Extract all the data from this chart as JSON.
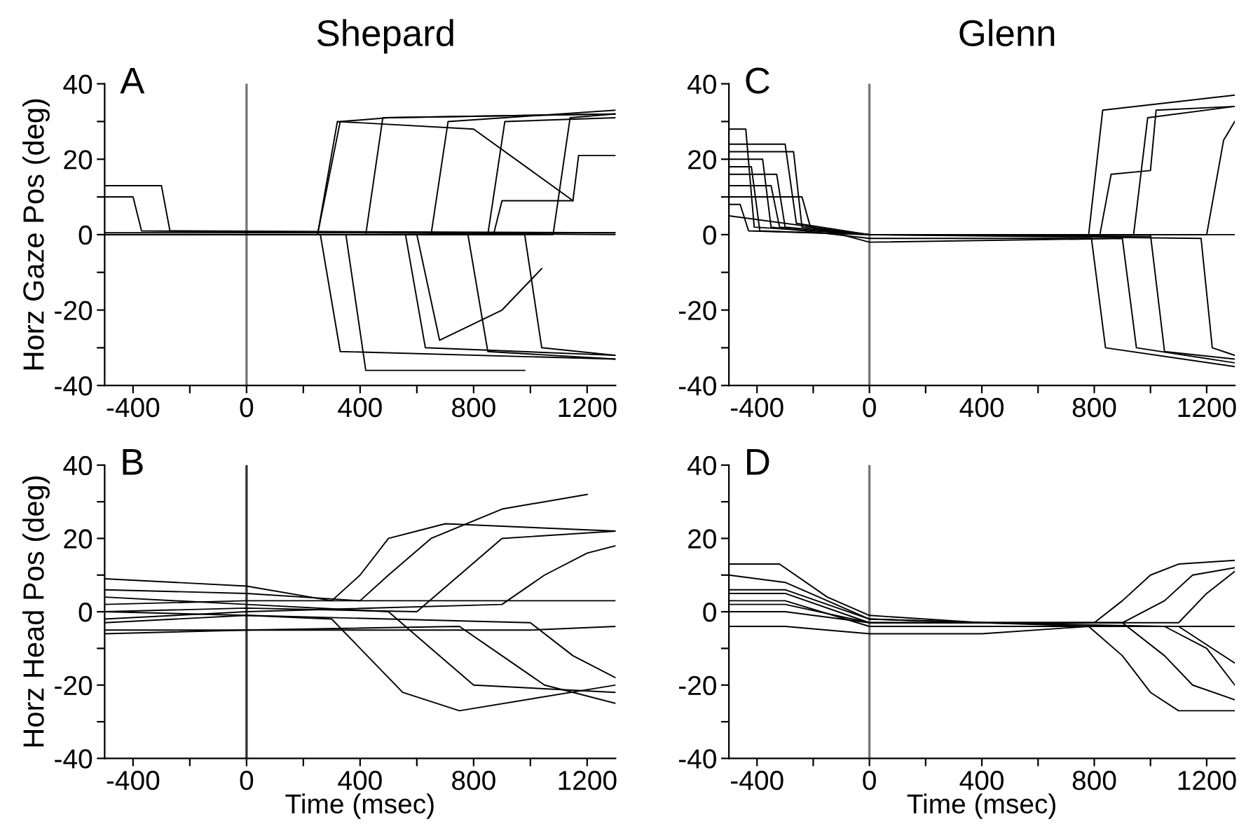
{
  "chart_data": [
    {
      "type": "line",
      "title": "Shepard",
      "ylabel": "Horz Gaze Pos (deg)",
      "annotations": [
        "A"
      ],
      "xlim": [
        -500,
        1300
      ],
      "ylim": [
        -40,
        40
      ],
      "xticks": [
        -400,
        {
          "value": -200,
          "label": null
        },
        0,
        {
          "value": 200,
          "label": null
        },
        400,
        {
          "value": 600,
          "label": null
        },
        800,
        {
          "value": 1000,
          "label": null
        },
        1200
      ],
      "yticks": [
        -40,
        {
          "value": -30,
          "label": null
        },
        -20,
        {
          "value": -10,
          "label": null
        },
        0,
        {
          "value": 10,
          "label": null
        },
        20,
        {
          "value": 30,
          "label": null
        },
        40
      ],
      "ref_lines": [
        {
          "axis": "x",
          "value": 0,
          "color": "#777777"
        }
      ],
      "series": [
        {
          "color": "#000000",
          "x": [
            -500,
            0,
            1300
          ],
          "values": [
            0.5,
            0.5,
            0.5
          ]
        },
        {
          "color": "#000000",
          "x": [
            -500,
            -300,
            -270,
            1300
          ],
          "values": [
            13,
            13,
            1,
            0.5
          ]
        },
        {
          "color": "#000000",
          "x": [
            -500,
            -400,
            -370,
            1300
          ],
          "values": [
            10,
            10,
            1,
            0
          ]
        },
        {
          "color": "#000000",
          "x": [
            -500,
            250,
            330,
            500,
            1300
          ],
          "values": [
            0,
            0,
            30,
            31,
            32
          ]
        },
        {
          "color": "#000000",
          "x": [
            -500,
            420,
            480,
            1300
          ],
          "values": [
            0,
            0,
            31,
            32
          ]
        },
        {
          "color": "#000000",
          "x": [
            -500,
            650,
            710,
            1300
          ],
          "values": [
            0,
            0,
            30,
            33
          ]
        },
        {
          "color": "#000000",
          "x": [
            -500,
            850,
            910,
            1300
          ],
          "values": [
            0,
            0,
            30,
            31
          ]
        },
        {
          "color": "#000000",
          "x": [
            -500,
            1080,
            1140,
            1300
          ],
          "values": [
            0,
            0,
            31,
            32
          ]
        },
        {
          "color": "#000000",
          "x": [
            -500,
            250,
            320,
            800,
            1150
          ],
          "values": [
            0,
            0,
            30,
            28,
            9
          ]
        },
        {
          "color": "#000000",
          "x": [
            -500,
            260,
            330,
            1300
          ],
          "values": [
            0,
            0,
            -31,
            -33
          ]
        },
        {
          "color": "#000000",
          "x": [
            -500,
            350,
            420,
            980
          ],
          "values": [
            0,
            0,
            -36,
            -36
          ]
        },
        {
          "color": "#000000",
          "x": [
            -500,
            560,
            630,
            1300
          ],
          "values": [
            0,
            0,
            -30,
            -32
          ]
        },
        {
          "color": "#000000",
          "x": [
            -500,
            600,
            680,
            900,
            1040
          ],
          "values": [
            0,
            0,
            -28,
            -20,
            -9
          ]
        },
        {
          "color": "#000000",
          "x": [
            -500,
            780,
            850,
            1300
          ],
          "values": [
            0,
            0,
            -31,
            -33
          ]
        },
        {
          "color": "#000000",
          "x": [
            -500,
            980,
            1040,
            1300
          ],
          "values": [
            0,
            0,
            -30,
            -32
          ]
        },
        {
          "color": "#000000",
          "x": [
            -500,
            870,
            900,
            1150,
            1170,
            1300
          ],
          "values": [
            0,
            0,
            9,
            9,
            21,
            21
          ]
        }
      ]
    },
    {
      "type": "line",
      "title": "Glenn",
      "annotations": [
        "C"
      ],
      "xlim": [
        -500,
        1300
      ],
      "ylim": [
        -40,
        40
      ],
      "xticks": [
        -400,
        {
          "value": -200,
          "label": null
        },
        0,
        {
          "value": 200,
          "label": null
        },
        400,
        {
          "value": 600,
          "label": null
        },
        800,
        {
          "value": 1000,
          "label": null
        },
        1200
      ],
      "yticks": [
        -40,
        {
          "value": -30,
          "label": null
        },
        -20,
        {
          "value": -10,
          "label": null
        },
        0,
        {
          "value": 10,
          "label": null
        },
        20,
        {
          "value": 30,
          "label": null
        },
        40
      ],
      "ref_lines": [
        {
          "axis": "x",
          "value": 0,
          "color": "#777777"
        }
      ],
      "series": [
        {
          "color": "#000000",
          "x": [
            -500,
            -440,
            -410,
            0,
            1300
          ],
          "values": [
            28,
            28,
            2,
            0,
            0
          ]
        },
        {
          "color": "#000000",
          "x": [
            -500,
            -300,
            -260,
            0,
            1000
          ],
          "values": [
            24,
            24,
            3,
            0,
            -0.5
          ]
        },
        {
          "color": "#000000",
          "x": [
            -500,
            -240,
            -210,
            0,
            780,
            830,
            1300
          ],
          "values": [
            10,
            10,
            2,
            0,
            0,
            33,
            37
          ]
        },
        {
          "color": "#000000",
          "x": [
            -500,
            -380,
            -350,
            0,
            790,
            840,
            1300
          ],
          "values": [
            20,
            20,
            2,
            -1,
            -1,
            -30,
            -35
          ]
        },
        {
          "color": "#000000",
          "x": [
            -500,
            -460,
            -430,
            0,
            820,
            860,
            1000,
            1020,
            1300
          ],
          "values": [
            8,
            8,
            1,
            0,
            0,
            16,
            17,
            33,
            34
          ]
        },
        {
          "color": "#000000",
          "x": [
            -500,
            -330,
            -300,
            0,
            940,
            990,
            1300
          ],
          "values": [
            16,
            16,
            2,
            0,
            0,
            31,
            34
          ]
        },
        {
          "color": "#000000",
          "x": [
            -500,
            -420,
            -390,
            0,
            1000,
            1050,
            1300
          ],
          "values": [
            18,
            18,
            1,
            0,
            0,
            -31,
            -33
          ]
        },
        {
          "color": "#000000",
          "x": [
            -500,
            -270,
            -240,
            0,
            1180,
            1220,
            1300
          ],
          "values": [
            22,
            22,
            2,
            0,
            -1,
            -30,
            -32
          ]
        },
        {
          "color": "#000000",
          "x": [
            -500,
            -350,
            -320,
            0,
            1200,
            1260,
            1300
          ],
          "values": [
            13,
            13,
            2,
            0,
            0,
            25,
            30
          ]
        },
        {
          "color": "#000000",
          "x": [
            -500,
            -200,
            0,
            900,
            950,
            1300
          ],
          "values": [
            5,
            2,
            -2,
            -1,
            -30,
            -34
          ]
        }
      ]
    },
    {
      "type": "line",
      "xlabel": "Time (msec)",
      "ylabel": "Horz Head Pos (deg)",
      "annotations": [
        "B"
      ],
      "xlim": [
        -500,
        1300
      ],
      "ylim": [
        -40,
        40
      ],
      "xticks": [
        -400,
        {
          "value": -200,
          "label": null
        },
        0,
        {
          "value": 200,
          "label": null
        },
        400,
        {
          "value": 600,
          "label": null
        },
        800,
        {
          "value": 1000,
          "label": null
        },
        1200
      ],
      "yticks": [
        -40,
        {
          "value": -30,
          "label": null
        },
        -20,
        {
          "value": -10,
          "label": null
        },
        0,
        {
          "value": 10,
          "label": null
        },
        20,
        {
          "value": 30,
          "label": null
        },
        40
      ],
      "ref_lines": [
        {
          "axis": "x",
          "value": 0,
          "color": "#333333"
        }
      ],
      "series": [
        {
          "color": "#000000",
          "x": [
            -500,
            0,
            300,
            400,
            500,
            700,
            1000,
            1300
          ],
          "values": [
            9,
            7,
            3,
            10,
            20,
            24,
            23,
            22
          ]
        },
        {
          "color": "#000000",
          "x": [
            -500,
            0,
            400,
            500,
            650,
            900,
            1200
          ],
          "values": [
            6,
            5,
            3,
            10,
            20,
            28,
            32
          ]
        },
        {
          "color": "#000000",
          "x": [
            -500,
            0,
            600,
            750,
            900,
            1300
          ],
          "values": [
            0,
            1,
            0,
            10,
            20,
            22
          ]
        },
        {
          "color": "#000000",
          "x": [
            -500,
            0,
            900,
            1050,
            1200,
            1300
          ],
          "values": [
            -2,
            0,
            2,
            10,
            16,
            18
          ]
        },
        {
          "color": "#000000",
          "x": [
            -500,
            0,
            1300
          ],
          "values": [
            2,
            3,
            3
          ]
        },
        {
          "color": "#000000",
          "x": [
            -500,
            0,
            300,
            400,
            550,
            750,
            1300
          ],
          "values": [
            -3,
            -1,
            -2,
            -10,
            -22,
            -27,
            -20
          ]
        },
        {
          "color": "#000000",
          "x": [
            -500,
            0,
            500,
            650,
            800,
            1300
          ],
          "values": [
            4,
            2,
            0,
            -10,
            -20,
            -22
          ]
        },
        {
          "color": "#000000",
          "x": [
            -500,
            0,
            750,
            900,
            1050,
            1300
          ],
          "values": [
            -6,
            -5,
            -4,
            -12,
            -20,
            -25
          ]
        },
        {
          "color": "#000000",
          "x": [
            -500,
            0,
            1000,
            1150,
            1300
          ],
          "values": [
            0,
            -1,
            -3,
            -12,
            -18
          ]
        },
        {
          "color": "#000000",
          "x": [
            -500,
            0,
            1000,
            1300
          ],
          "values": [
            -5,
            -5,
            -5,
            -4
          ]
        }
      ]
    },
    {
      "type": "line",
      "xlabel": "Time (msec)",
      "annotations": [
        "D"
      ],
      "xlim": [
        -500,
        1300
      ],
      "ylim": [
        -40,
        40
      ],
      "xticks": [
        -400,
        {
          "value": -200,
          "label": null
        },
        0,
        {
          "value": 200,
          "label": null
        },
        400,
        {
          "value": 600,
          "label": null
        },
        800,
        {
          "value": 1000,
          "label": null
        },
        1200
      ],
      "yticks": [
        -40,
        {
          "value": -30,
          "label": null
        },
        -20,
        {
          "value": -10,
          "label": null
        },
        0,
        {
          "value": 10,
          "label": null
        },
        20,
        {
          "value": 30,
          "label": null
        },
        40
      ],
      "ref_lines": [
        {
          "axis": "x",
          "value": 0,
          "color": "#777777"
        }
      ],
      "series": [
        {
          "color": "#000000",
          "x": [
            -500,
            -320,
            -150,
            0,
            400,
            800,
            1300
          ],
          "values": [
            13,
            13,
            4,
            -1,
            -3,
            -4,
            -4
          ]
        },
        {
          "color": "#000000",
          "x": [
            -500,
            -300,
            0,
            400,
            800,
            900,
            1000,
            1100,
            1300
          ],
          "values": [
            10,
            8,
            -2,
            -3,
            -3,
            3,
            10,
            13,
            14
          ]
        },
        {
          "color": "#000000",
          "x": [
            -500,
            -300,
            0,
            400,
            900,
            1050,
            1150,
            1300
          ],
          "values": [
            5,
            5,
            -3,
            -3,
            -3,
            3,
            10,
            12
          ]
        },
        {
          "color": "#000000",
          "x": [
            -500,
            -300,
            0,
            400,
            1100,
            1200,
            1300
          ],
          "values": [
            2,
            2,
            -3,
            -3,
            -3,
            5,
            11
          ]
        },
        {
          "color": "#000000",
          "x": [
            -500,
            -300,
            0,
            400,
            780,
            900,
            1000,
            1100,
            1300
          ],
          "values": [
            -4,
            -4,
            -6,
            -6,
            -4,
            -12,
            -22,
            -27,
            -27
          ]
        },
        {
          "color": "#000000",
          "x": [
            -500,
            -300,
            0,
            400,
            900,
            1050,
            1150,
            1300
          ],
          "values": [
            6,
            6,
            -2,
            -3,
            -3,
            -12,
            -20,
            -24
          ]
        },
        {
          "color": "#000000",
          "x": [
            -500,
            -300,
            0,
            400,
            1050,
            1200,
            1300
          ],
          "values": [
            0,
            0,
            -3,
            -3,
            -4,
            -10,
            -20
          ]
        },
        {
          "color": "#000000",
          "x": [
            -500,
            -300,
            0,
            400,
            1100,
            1300
          ],
          "values": [
            3,
            3,
            -4,
            -4,
            -4,
            -14
          ]
        }
      ]
    }
  ]
}
